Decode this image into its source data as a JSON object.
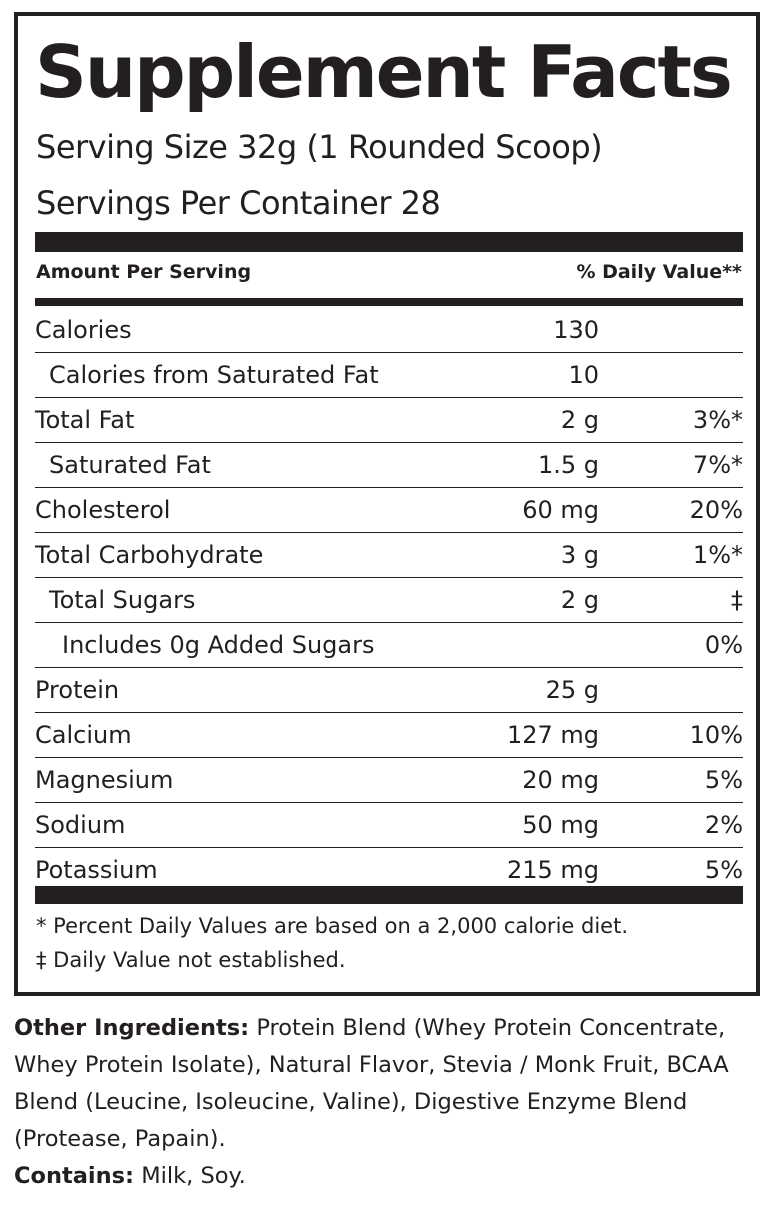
{
  "title": "Supplement Facts",
  "serving_size": "Serving Size 32g (1 Rounded Scoop)",
  "servings_per_container": "Servings Per Container  28",
  "header": {
    "amount": "Amount Per Serving",
    "dv": "% Daily Value**"
  },
  "rows": [
    {
      "label": "Calories",
      "amount": "130",
      "dv": "",
      "indent": 0
    },
    {
      "label": "Calories from Saturated Fat",
      "amount": "10",
      "dv": "",
      "indent": 1
    },
    {
      "label": "Total Fat",
      "amount": "2 g",
      "dv": "3%*",
      "indent": 0
    },
    {
      "label": "Saturated Fat",
      "amount": "1.5 g",
      "dv": "7%*",
      "indent": 1
    },
    {
      "label": "Cholesterol",
      "amount": "60 mg",
      "dv": "20%",
      "indent": 0
    },
    {
      "label": "Total Carbohydrate",
      "amount": "3 g",
      "dv": "1%*",
      "indent": 0
    },
    {
      "label": "Total Sugars",
      "amount": "2 g",
      "dv": "‡",
      "indent": 1
    },
    {
      "label": "Includes 0g Added Sugars",
      "amount": "",
      "dv": "0%",
      "indent": 2
    },
    {
      "label": "Protein",
      "amount": "25 g",
      "dv": "",
      "indent": 0
    },
    {
      "label": "Calcium",
      "amount": "127 mg",
      "dv": "10%",
      "indent": 0
    },
    {
      "label": "Magnesium",
      "amount": "20 mg",
      "dv": "5%",
      "indent": 0
    },
    {
      "label": "Sodium",
      "amount": "50 mg",
      "dv": "2%",
      "indent": 0
    },
    {
      "label": "Potassium",
      "amount": "215 mg",
      "dv": "5%",
      "indent": 0
    }
  ],
  "footnotes": [
    "* Percent Daily Values are based on a 2,000 calorie diet.",
    "‡ Daily Value not established."
  ],
  "other_ingredients": {
    "label": "Other Ingredients:",
    "text": " Protein Blend (Whey Protein Concentrate, Whey Protein Isolate), Natural Flavor, Stevia / Monk Fruit, BCAA Blend (Leucine, Isoleucine, Valine), Digestive Enzyme Blend (Protease, Papain)."
  },
  "contains": {
    "label": "Contains:",
    "text": " Milk, Soy."
  }
}
